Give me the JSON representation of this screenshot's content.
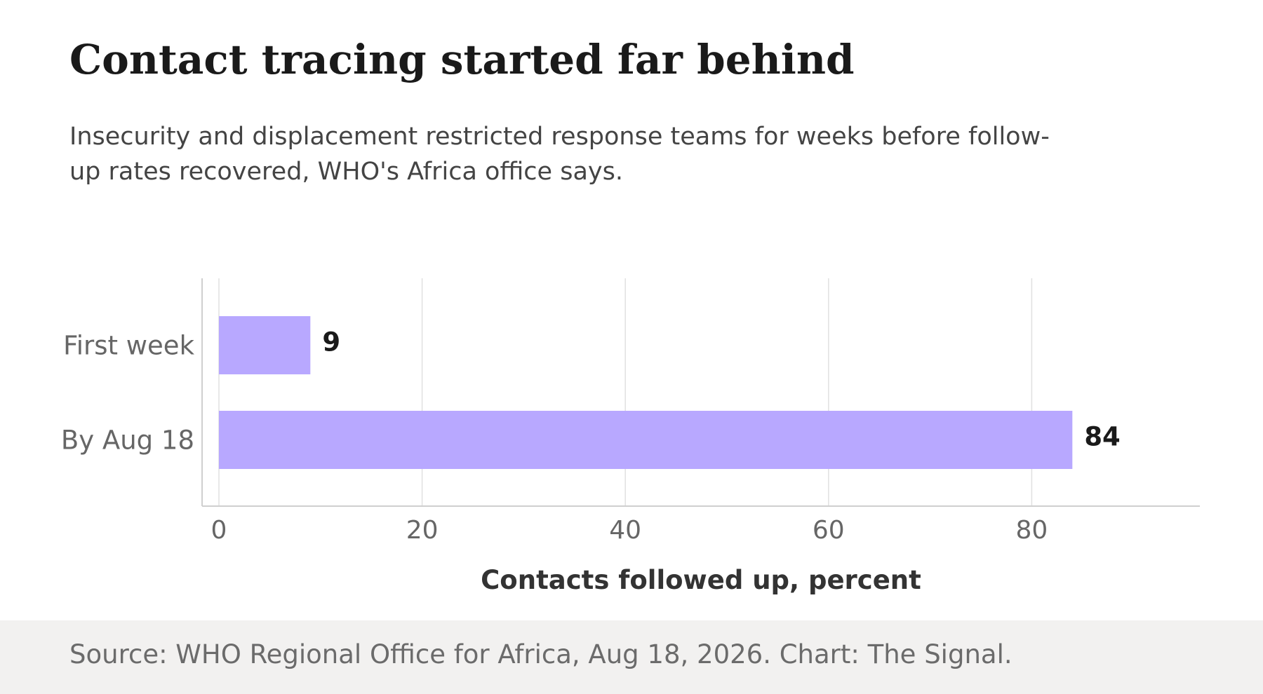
{
  "title": "Contact tracing started far behind",
  "subtitle": "Insecurity and displacement restricted response teams for weeks before follow-up rates recovered, WHO's Africa office says.",
  "source": "Source: WHO Regional Office for Africa, Aug 18, 2026. Chart: The Signal.",
  "colors": {
    "bar": "#b8a8ff",
    "grid": "#e0e0e0",
    "axis": "#cfcfcf",
    "tick_text": "#666666",
    "value_text": "#1a1a1a",
    "axis_label": "#333333"
  },
  "chart_data": {
    "type": "bar",
    "orientation": "horizontal",
    "categories": [
      "First week",
      "By Aug 18"
    ],
    "values": [
      9,
      84
    ],
    "value_labels": [
      "9",
      "84"
    ],
    "xlabel": "Contacts followed up, percent",
    "ylabel": "",
    "xlim": [
      0,
      96
    ],
    "xticks": [
      0,
      20,
      40,
      60,
      80
    ],
    "grid": "vertical"
  }
}
